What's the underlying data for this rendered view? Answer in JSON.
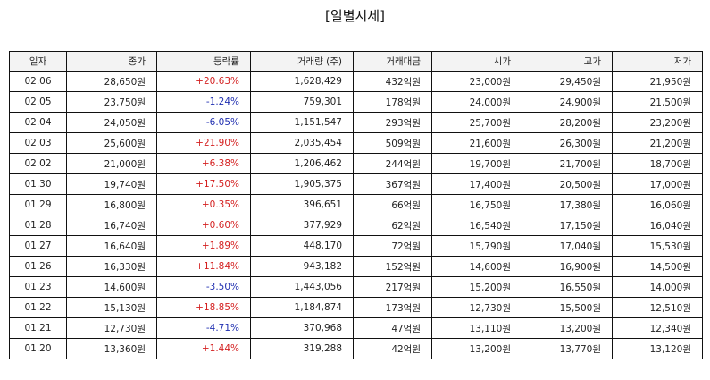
{
  "page_title": "[일별시세]",
  "colors": {
    "up": "#d42020",
    "down": "#1f2eb0"
  },
  "columns": [
    "일자",
    "종가",
    "등락률",
    "거래량 (주)",
    "거래대금",
    "시가",
    "고가",
    "저가"
  ],
  "rows": [
    {
      "date": "02.06",
      "close": "28,650원",
      "change": "+20.63%",
      "dir": "up",
      "volume": "1,628,429",
      "amount": "432억원",
      "open": "23,000원",
      "high": "29,450원",
      "low": "21,950원"
    },
    {
      "date": "02.05",
      "close": "23,750원",
      "change": "-1.24%",
      "dir": "down",
      "volume": "759,301",
      "amount": "178억원",
      "open": "24,000원",
      "high": "24,900원",
      "low": "21,500원"
    },
    {
      "date": "02.04",
      "close": "24,050원",
      "change": "-6.05%",
      "dir": "down",
      "volume": "1,151,547",
      "amount": "293억원",
      "open": "25,700원",
      "high": "28,200원",
      "low": "23,200원"
    },
    {
      "date": "02.03",
      "close": "25,600원",
      "change": "+21.90%",
      "dir": "up",
      "volume": "2,035,454",
      "amount": "509억원",
      "open": "21,600원",
      "high": "26,300원",
      "low": "21,200원"
    },
    {
      "date": "02.02",
      "close": "21,000원",
      "change": "+6.38%",
      "dir": "up",
      "volume": "1,206,462",
      "amount": "244억원",
      "open": "19,700원",
      "high": "21,700원",
      "low": "18,700원"
    },
    {
      "date": "01.30",
      "close": "19,740원",
      "change": "+17.50%",
      "dir": "up",
      "volume": "1,905,375",
      "amount": "367억원",
      "open": "17,400원",
      "high": "20,500원",
      "low": "17,000원"
    },
    {
      "date": "01.29",
      "close": "16,800원",
      "change": "+0.35%",
      "dir": "up",
      "volume": "396,651",
      "amount": "66억원",
      "open": "16,750원",
      "high": "17,380원",
      "low": "16,060원"
    },
    {
      "date": "01.28",
      "close": "16,740원",
      "change": "+0.60%",
      "dir": "up",
      "volume": "377,929",
      "amount": "62억원",
      "open": "16,540원",
      "high": "17,150원",
      "low": "16,040원"
    },
    {
      "date": "01.27",
      "close": "16,640원",
      "change": "+1.89%",
      "dir": "up",
      "volume": "448,170",
      "amount": "72억원",
      "open": "15,790원",
      "high": "17,040원",
      "low": "15,530원"
    },
    {
      "date": "01.26",
      "close": "16,330원",
      "change": "+11.84%",
      "dir": "up",
      "volume": "943,182",
      "amount": "152억원",
      "open": "14,600원",
      "high": "16,900원",
      "low": "14,500원"
    },
    {
      "date": "01.23",
      "close": "14,600원",
      "change": "-3.50%",
      "dir": "down",
      "volume": "1,443,056",
      "amount": "217억원",
      "open": "15,200원",
      "high": "16,550원",
      "low": "14,000원"
    },
    {
      "date": "01.22",
      "close": "15,130원",
      "change": "+18.85%",
      "dir": "up",
      "volume": "1,184,874",
      "amount": "173억원",
      "open": "12,730원",
      "high": "15,500원",
      "low": "12,510원"
    },
    {
      "date": "01.21",
      "close": "12,730원",
      "change": "-4.71%",
      "dir": "down",
      "volume": "370,968",
      "amount": "47억원",
      "open": "13,110원",
      "high": "13,200원",
      "low": "12,340원"
    },
    {
      "date": "01.20",
      "close": "13,360원",
      "change": "+1.44%",
      "dir": "up",
      "volume": "319,288",
      "amount": "42억원",
      "open": "13,200원",
      "high": "13,770원",
      "low": "13,120원"
    }
  ]
}
